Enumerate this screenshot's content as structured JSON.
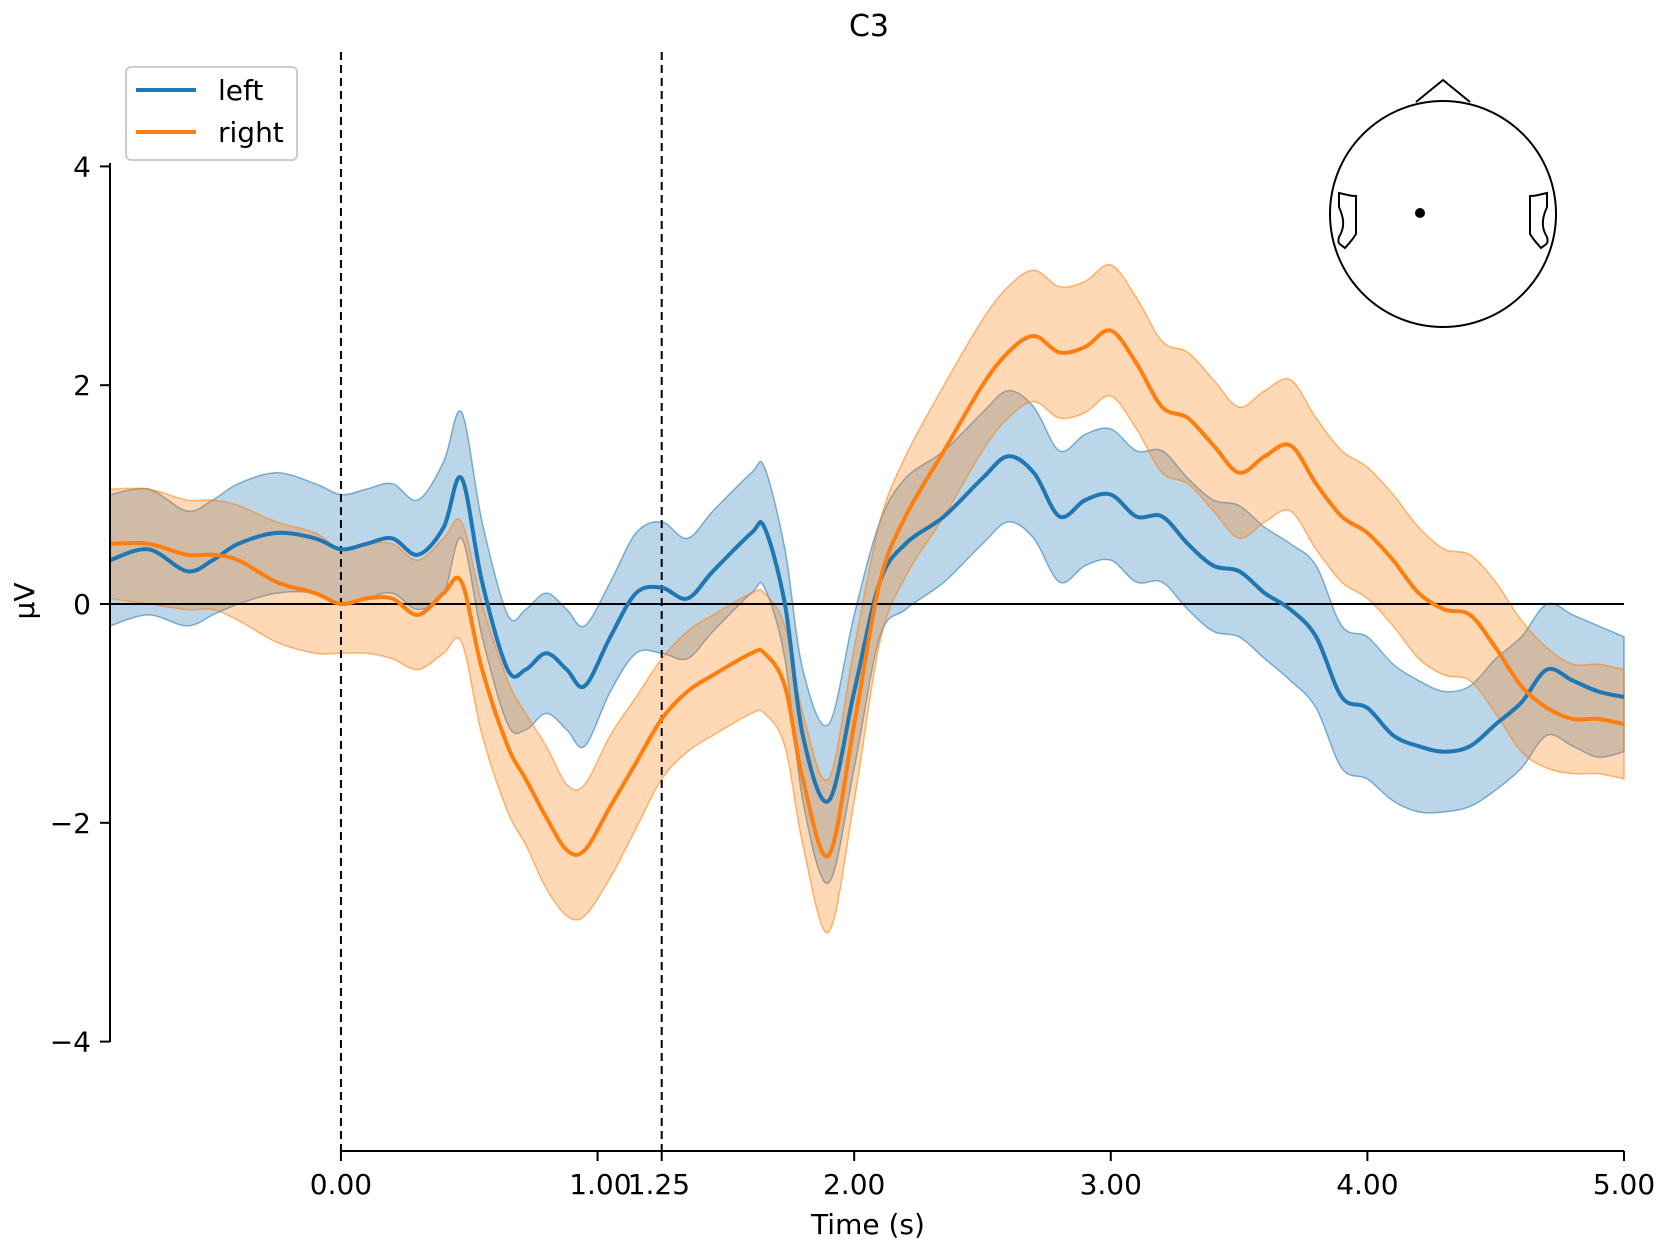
{
  "chart_data": {
    "type": "line",
    "title": "C3",
    "xlabel": "Time (s)",
    "ylabel": "µV",
    "xlim": [
      -0.9,
      5.0
    ],
    "ylim": [
      -5.0,
      5.0
    ],
    "y_axis_range": [
      -4,
      4
    ],
    "x_ticks": [
      0.0,
      1.0,
      1.25,
      2.0,
      3.0,
      4.0,
      5.0
    ],
    "x_tick_labels": [
      "0.00",
      "1.00",
      "1.25",
      "2.00",
      "3.00",
      "4.00",
      "5.00"
    ],
    "y_ticks": [
      -4,
      -2,
      0,
      2,
      4
    ],
    "y_tick_labels": [
      "−4",
      "−2",
      "0",
      "2",
      "4"
    ],
    "vlines": [
      0.0,
      1.25
    ],
    "hline": 0,
    "legend_position": "top-left",
    "sensor_inset": {
      "label": "sensor position C3",
      "position": "top-right"
    },
    "colors": {
      "left": "#1f77b4",
      "right": "#ff7f0e"
    },
    "x": [
      -0.9,
      -0.75,
      -0.6,
      -0.5,
      -0.4,
      -0.25,
      -0.1,
      0.0,
      0.1,
      0.2,
      0.3,
      0.4,
      0.47,
      0.55,
      0.65,
      0.72,
      0.8,
      0.88,
      0.95,
      1.05,
      1.15,
      1.25,
      1.35,
      1.45,
      1.6,
      1.65,
      1.73,
      1.8,
      1.9,
      2.0,
      2.1,
      2.2,
      2.35,
      2.5,
      2.6,
      2.7,
      2.8,
      2.9,
      3.0,
      3.1,
      3.2,
      3.3,
      3.4,
      3.5,
      3.6,
      3.7,
      3.8,
      3.9,
      4.0,
      4.1,
      4.2,
      4.3,
      4.4,
      4.5,
      4.6,
      4.7,
      4.8,
      4.9,
      5.0
    ],
    "series": [
      {
        "name": "left",
        "values": [
          0.4,
          0.5,
          0.3,
          0.4,
          0.55,
          0.65,
          0.6,
          0.5,
          0.55,
          0.6,
          0.45,
          0.7,
          1.15,
          0.2,
          -0.6,
          -0.6,
          -0.45,
          -0.6,
          -0.75,
          -0.3,
          0.1,
          0.15,
          0.05,
          0.3,
          0.65,
          0.7,
          0.0,
          -1.2,
          -1.8,
          -0.8,
          0.2,
          0.55,
          0.8,
          1.15,
          1.35,
          1.2,
          0.8,
          0.95,
          1.0,
          0.8,
          0.8,
          0.55,
          0.35,
          0.3,
          0.1,
          -0.05,
          -0.3,
          -0.85,
          -0.95,
          -1.2,
          -1.3,
          -1.35,
          -1.3,
          -1.1,
          -0.9,
          -0.6,
          -0.7,
          -0.8,
          -0.85
        ],
        "lower": [
          -0.2,
          -0.1,
          -0.2,
          -0.1,
          0.0,
          0.1,
          0.1,
          0.0,
          0.05,
          0.1,
          -0.05,
          0.1,
          0.6,
          -0.3,
          -1.1,
          -1.15,
          -1.0,
          -1.15,
          -1.3,
          -0.8,
          -0.45,
          -0.45,
          -0.5,
          -0.25,
          0.1,
          0.15,
          -0.5,
          -1.8,
          -2.55,
          -1.5,
          -0.3,
          -0.05,
          0.2,
          0.55,
          0.75,
          0.6,
          0.2,
          0.35,
          0.4,
          0.2,
          0.2,
          -0.05,
          -0.25,
          -0.3,
          -0.5,
          -0.7,
          -0.95,
          -1.5,
          -1.6,
          -1.8,
          -1.9,
          -1.9,
          -1.85,
          -1.7,
          -1.5,
          -1.2,
          -1.3,
          -1.4,
          -1.35
        ],
        "upper": [
          1.0,
          1.05,
          0.85,
          0.95,
          1.1,
          1.2,
          1.1,
          1.0,
          1.05,
          1.1,
          0.95,
          1.3,
          1.75,
          0.75,
          -0.1,
          -0.05,
          0.1,
          -0.05,
          -0.2,
          0.2,
          0.65,
          0.75,
          0.6,
          0.85,
          1.2,
          1.25,
          0.5,
          -0.6,
          -1.1,
          -0.1,
          0.75,
          1.15,
          1.4,
          1.75,
          1.95,
          1.8,
          1.4,
          1.55,
          1.6,
          1.4,
          1.4,
          1.15,
          0.95,
          0.9,
          0.7,
          0.55,
          0.35,
          -0.2,
          -0.3,
          -0.55,
          -0.7,
          -0.8,
          -0.75,
          -0.5,
          -0.3,
          0.0,
          -0.1,
          -0.2,
          -0.3
        ]
      },
      {
        "name": "right",
        "values": [
          0.55,
          0.55,
          0.45,
          0.45,
          0.4,
          0.2,
          0.1,
          0.0,
          0.05,
          0.05,
          -0.1,
          0.1,
          0.2,
          -0.6,
          -1.3,
          -1.6,
          -1.95,
          -2.25,
          -2.25,
          -1.85,
          -1.45,
          -1.05,
          -0.8,
          -0.65,
          -0.45,
          -0.45,
          -0.75,
          -1.6,
          -2.3,
          -1.1,
          0.2,
          0.8,
          1.4,
          2.0,
          2.3,
          2.45,
          2.3,
          2.35,
          2.5,
          2.2,
          1.8,
          1.7,
          1.45,
          1.2,
          1.35,
          1.45,
          1.1,
          0.8,
          0.65,
          0.4,
          0.1,
          -0.05,
          -0.1,
          -0.4,
          -0.75,
          -0.95,
          -1.05,
          -1.05,
          -1.1
        ],
        "lower": [
          0.05,
          0.0,
          -0.05,
          -0.05,
          -0.15,
          -0.35,
          -0.45,
          -0.45,
          -0.45,
          -0.5,
          -0.6,
          -0.45,
          -0.35,
          -1.2,
          -1.9,
          -2.2,
          -2.6,
          -2.85,
          -2.85,
          -2.5,
          -2.05,
          -1.6,
          -1.35,
          -1.2,
          -1.0,
          -1.0,
          -1.3,
          -2.2,
          -3.0,
          -1.8,
          -0.35,
          0.25,
          0.8,
          1.4,
          1.7,
          1.85,
          1.7,
          1.75,
          1.9,
          1.6,
          1.2,
          1.1,
          0.85,
          0.6,
          0.75,
          0.85,
          0.5,
          0.2,
          0.05,
          -0.2,
          -0.5,
          -0.65,
          -0.7,
          -1.0,
          -1.35,
          -1.5,
          -1.55,
          -1.55,
          -1.6
        ],
        "upper": [
          1.05,
          1.05,
          0.95,
          0.95,
          0.9,
          0.75,
          0.65,
          0.5,
          0.55,
          0.55,
          0.4,
          0.6,
          0.75,
          0.0,
          -0.7,
          -1.0,
          -1.3,
          -1.65,
          -1.65,
          -1.2,
          -0.85,
          -0.5,
          -0.25,
          -0.1,
          0.1,
          0.1,
          -0.2,
          -1.0,
          -1.6,
          -0.4,
          0.75,
          1.35,
          2.0,
          2.6,
          2.9,
          3.05,
          2.9,
          2.95,
          3.1,
          2.8,
          2.4,
          2.3,
          2.05,
          1.8,
          1.95,
          2.05,
          1.7,
          1.4,
          1.25,
          1.0,
          0.7,
          0.5,
          0.45,
          0.2,
          -0.15,
          -0.4,
          -0.55,
          -0.55,
          -0.6
        ]
      }
    ]
  }
}
